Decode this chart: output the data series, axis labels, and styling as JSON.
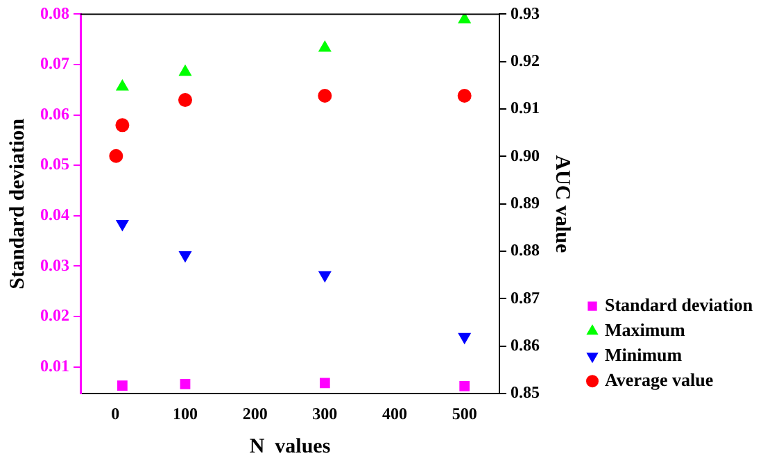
{
  "chart_data": {
    "type": "scatter",
    "xlabel": "N  values",
    "ylabel": "Standard deviation",
    "y2label": "AUC value",
    "xlim": [
      -50,
      550
    ],
    "xticks": [
      0,
      100,
      200,
      300,
      400,
      500
    ],
    "ylim": [
      0.0047,
      0.08
    ],
    "yticks": [
      0.01,
      0.02,
      0.03,
      0.04,
      0.05,
      0.06,
      0.07,
      0.08
    ],
    "y2lim": [
      0.85,
      0.93
    ],
    "y2ticks": [
      {
        "value": 0.85,
        "label": "0.85"
      },
      {
        "value": 0.86,
        "label": "0.86"
      },
      {
        "value": 0.87,
        "label": "0.87"
      },
      {
        "value": 0.88,
        "label": "0.88"
      },
      {
        "value": 0.89,
        "label": "0.89"
      },
      {
        "value": 0.9,
        "label": "0.90"
      },
      {
        "value": 0.91,
        "label": "0.91"
      },
      {
        "value": 0.92,
        "label": "0.92"
      },
      {
        "value": 0.93,
        "label": "0.93"
      }
    ],
    "legend": "bottom right",
    "grid": false,
    "series": [
      {
        "name": "Standard deviation",
        "color": "#ff00ff",
        "marker": "square",
        "x": [
          10,
          100,
          300,
          500
        ],
        "values": [
          0.0063,
          0.0066,
          0.0068,
          0.0062
        ]
      },
      {
        "name": "Maximum",
        "color": "#00ff00",
        "marker": "triangle",
        "axis": "y2",
        "x": [
          10,
          100,
          300,
          500
        ],
        "values": [
          0.9147,
          0.9178,
          0.9229,
          0.9289
        ]
      },
      {
        "name": "Minimum",
        "color": "#0000ff",
        "marker": "triangle-down",
        "axis": "y2",
        "x": [
          10,
          100,
          300,
          500
        ],
        "values": [
          0.8858,
          0.8792,
          0.875,
          0.862
        ]
      },
      {
        "name": "Average value",
        "color": "#ff0000",
        "marker": "circle",
        "axis": "y2",
        "x": [
          1,
          10,
          100,
          300,
          500
        ],
        "values": [
          0.9001,
          0.9066,
          0.9119,
          0.9128,
          0.9128
        ]
      }
    ]
  }
}
